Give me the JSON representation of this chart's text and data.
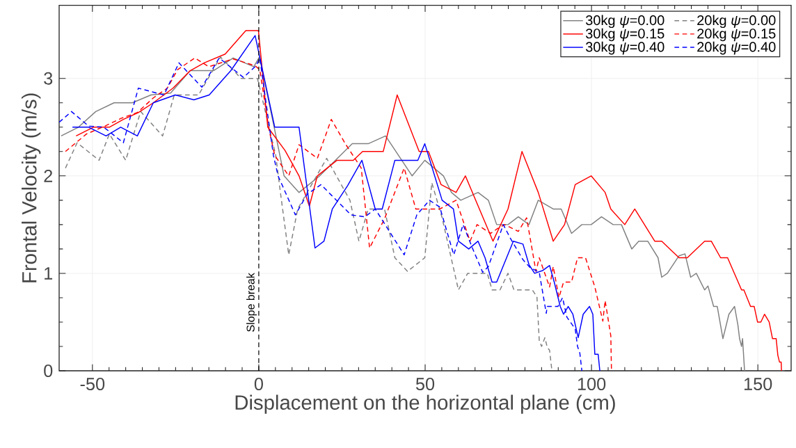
{
  "chart_data": {
    "type": "line",
    "xlabel": "Displacement on the horizontal plane (cm)",
    "ylabel": "Frontal Velocity (m/s)",
    "xlim": [
      -60,
      160
    ],
    "ylim": [
      0,
      3.75
    ],
    "xticks": [
      -50,
      0,
      50,
      100,
      150
    ],
    "yticks": [
      0,
      1,
      2,
      3
    ],
    "grid": true,
    "legend": "top right",
    "ref_lines": [
      {
        "axis": "x",
        "value": 0,
        "label": "Slope break",
        "color": "#000000",
        "line_style": "dashed"
      }
    ],
    "series": [
      {
        "name": "30kg  *ψ*=0.00",
        "color": "#808080",
        "line_style": "solid",
        "x": [
          -59.4,
          -54.2,
          -49,
          -43.5,
          -38,
          -32.4,
          -26.5,
          -20.6,
          -13.6,
          -7.7,
          -1.5,
          0.2,
          4.8,
          7.6,
          12.1,
          18.3,
          28.1,
          32.9,
          38.1,
          46.1,
          49.9,
          55.5,
          57.9,
          60.7,
          65.9,
          69,
          71.5,
          74.9,
          78,
          81.2,
          84,
          88.5,
          90.9,
          94,
          97.1,
          99.9,
          103,
          106.5,
          109,
          112.1,
          114.2,
          116.9,
          120,
          121.1,
          122.8,
          126.3,
          128.1,
          129.8,
          131.5,
          134,
          135,
          136.7,
          137.8,
          139.5,
          141.3,
          143,
          144,
          144.5,
          145.1,
          145.4,
          146
        ],
        "values": [
          2.41,
          2.5,
          2.66,
          2.75,
          2.75,
          2.83,
          2.85,
          3.08,
          3.08,
          3.21,
          3.12,
          3.22,
          2.47,
          2.0,
          1.83,
          2.0,
          2.33,
          2.33,
          2.41,
          2.0,
          2.16,
          2.0,
          1.83,
          1.75,
          1.83,
          1.75,
          1.5,
          1.5,
          1.58,
          1.5,
          1.75,
          1.66,
          1.66,
          1.41,
          1.5,
          1.5,
          1.58,
          1.5,
          1.5,
          1.25,
          1.33,
          1.33,
          1.16,
          0.96,
          1.0,
          1.18,
          1.2,
          0.96,
          1.0,
          0.83,
          0.87,
          0.66,
          0.66,
          0.33,
          0.58,
          0.66,
          0.47,
          0.33,
          0.25,
          0.33,
          0
        ]
      },
      {
        "name": "20kg  *ψ*=0.00",
        "color": "#808080",
        "line_style": "dashed",
        "x": [
          -58.1,
          -54.6,
          -48,
          -44.9,
          -40,
          -35.5,
          -28.9,
          -25.4,
          -18.1,
          -11.5,
          -5.3,
          -0.4,
          5.1,
          6.5,
          9,
          11.7,
          20.4,
          27.4,
          30.1,
          32.9,
          37.8,
          40.9,
          44.7,
          49.9,
          52,
          55.1,
          60,
          62.8,
          68.7,
          70.1,
          72.5,
          74.9,
          76.7,
          82.2,
          83.6,
          84.3,
          85,
          86,
          86.7,
          87.4,
          88.1
        ],
        "values": [
          2.08,
          2.34,
          2.16,
          2.43,
          2.16,
          2.66,
          2.41,
          2.83,
          2.83,
          3.22,
          3.0,
          3.0,
          2.21,
          1.83,
          1.19,
          1.66,
          2.18,
          1.75,
          1.33,
          1.66,
          1.66,
          1.16,
          1.02,
          1.16,
          1.93,
          1.57,
          0.83,
          1.0,
          1.0,
          0.83,
          0.83,
          1.0,
          0.83,
          0.83,
          0.76,
          0.31,
          0.25,
          0.34,
          0.24,
          0.21,
          0
        ]
      },
      {
        "name": "30kg  *ψ*=0.15",
        "color": "#ff0000",
        "line_style": "solid",
        "x": [
          -54.9,
          -49.7,
          -44.9,
          -40.7,
          -36.2,
          -31.7,
          -25.8,
          -20.6,
          -16.4,
          -10.1,
          -3.9,
          -0.1,
          2.7,
          7.9,
          12.1,
          15.2,
          17.6,
          23.5,
          28.4,
          31.2,
          37.4,
          41.6,
          48.2,
          51,
          54.8,
          59.3,
          62.1,
          70.4,
          74.9,
          79.1,
          84,
          88.5,
          91.9,
          95.1,
          99.9,
          104.1,
          105.8,
          110,
          113,
          119,
          121.1,
          126.3,
          128.8,
          134,
          136,
          138.8,
          140.9,
          145.1,
          145.8,
          147.8,
          148.9,
          149.9,
          150.9,
          152,
          153.4,
          154.4,
          155.5,
          156,
          156.5,
          157,
          157.1
        ],
        "values": [
          2.41,
          2.5,
          2.5,
          2.58,
          2.65,
          2.75,
          2.9,
          3.08,
          3.16,
          3.25,
          3.49,
          3.49,
          2.5,
          2.26,
          2.0,
          1.69,
          2.0,
          2.16,
          2.16,
          2.25,
          2.25,
          2.83,
          2.25,
          2.25,
          1.91,
          1.83,
          2.0,
          1.33,
          1.66,
          2.25,
          1.83,
          1.33,
          1.5,
          1.91,
          2.0,
          1.83,
          1.66,
          1.5,
          1.66,
          1.33,
          1.33,
          1.16,
          1.16,
          1.33,
          1.33,
          1.16,
          1.16,
          0.83,
          0.83,
          0.66,
          0.66,
          0.5,
          0.5,
          0.58,
          0.5,
          0.33,
          0.33,
          0.16,
          0.09,
          0.09,
          0
        ]
      },
      {
        "name": "20kg  *ψ*=0.15",
        "color": "#ff0000",
        "line_style": "dashed",
        "x": [
          -58.1,
          -51.8,
          -46.3,
          -41.4,
          -36.5,
          -31.7,
          -27.5,
          -24.4,
          -19.2,
          -15,
          -7.7,
          -1.1,
          0.3,
          3.1,
          4.8,
          9,
          12.1,
          17.6,
          21.8,
          26,
          30.8,
          33.3,
          37.8,
          43.7,
          47.2,
          51,
          54.4,
          59.3,
          63.5,
          65.6,
          69.7,
          71.8,
          73.9,
          78,
          80.5,
          83.3,
          84.3,
          87.4,
          88.5,
          90.2,
          91.6,
          94,
          95.8,
          98.2,
          101,
          103.4,
          104.1,
          105.8,
          106
        ],
        "values": [
          2.25,
          2.43,
          2.51,
          2.59,
          2.65,
          2.8,
          2.9,
          3.09,
          3.21,
          3.12,
          3.2,
          3.13,
          3.09,
          2.47,
          2.21,
          2.0,
          2.32,
          2.18,
          2.58,
          2.33,
          2.08,
          1.26,
          1.56,
          2.08,
          1.66,
          1.66,
          1.66,
          1.75,
          1.33,
          1.5,
          1.41,
          1.46,
          1.5,
          1.43,
          1.57,
          1.02,
          1.16,
          0.86,
          1.07,
          0.75,
          0.91,
          0.91,
          1.16,
          1.16,
          0.86,
          0.51,
          0.72,
          0.36,
          0
        ]
      },
      {
        "name": "30kg  *ψ*=0.40",
        "color": "#0000ff",
        "line_style": "solid",
        "x": [
          -56,
          -51.1,
          -45.9,
          -41.5,
          -36.5,
          -31.7,
          -25.1,
          -19.5,
          -14.9,
          -8.4,
          -1.1,
          4.8,
          12.1,
          16.9,
          19.6,
          22.1,
          26.7,
          31,
          35,
          37.1,
          40.9,
          47.8,
          49.9,
          55.1,
          58.5,
          60,
          63.1,
          65.9,
          68,
          70.1,
          71.5,
          76.5,
          79.4,
          81.2,
          82.9,
          85.4,
          87.4,
          88.8,
          90.6,
          91.6,
          93,
          94.4,
          96,
          97.5,
          99.4,
          100.4,
          101,
          102,
          102.5
        ],
        "values": [
          2.5,
          2.5,
          2.41,
          2.5,
          2.41,
          2.75,
          2.83,
          2.78,
          2.83,
          3.08,
          3.44,
          2.5,
          2.5,
          1.26,
          1.33,
          1.66,
          1.9,
          2.16,
          1.66,
          1.66,
          2.16,
          2.16,
          2.33,
          1.75,
          1.66,
          1.33,
          1.25,
          1.33,
          1.16,
          0.91,
          0.91,
          1.33,
          1.3,
          1.09,
          1.0,
          1.03,
          1.08,
          0.91,
          0.66,
          0.58,
          0.66,
          0.58,
          0.34,
          0.58,
          0.66,
          0.58,
          0.17,
          0.17,
          0
        ]
      },
      {
        "name": "20kg  *ψ*=0.40",
        "color": "#0000ff",
        "line_style": "dashed",
        "x": [
          -60,
          -56.3,
          -51.1,
          -46.6,
          -40.7,
          -36.2,
          -28.5,
          -24,
          -17.1,
          -11.9,
          -4.6,
          -0.8,
          0.3,
          4.4,
          5.8,
          11,
          14.5,
          18.7,
          27.7,
          31.9,
          35,
          43.7,
          47.5,
          51.3,
          54.4,
          58.6,
          61.4,
          64.2,
          67.3,
          69,
          73.5,
          75.6,
          79.4,
          81.5,
          84.3,
          86.4,
          86.7,
          89.9,
          91.3,
          92.6,
          95.1,
          95.8,
          96.5,
          97.1
        ],
        "values": [
          2.55,
          2.66,
          2.51,
          2.5,
          2.34,
          2.9,
          2.83,
          3.16,
          2.91,
          3.21,
          3.01,
          3.13,
          3.21,
          2.21,
          2.0,
          1.6,
          1.81,
          1.91,
          1.6,
          1.58,
          1.66,
          1.19,
          1.6,
          1.75,
          1.68,
          1.19,
          1.5,
          1.26,
          1.01,
          1.07,
          1.5,
          1.36,
          1.14,
          1.06,
          1.01,
          0.59,
          0.66,
          0.66,
          0.75,
          0.55,
          0.43,
          0.25,
          0.18,
          0
        ]
      }
    ]
  }
}
